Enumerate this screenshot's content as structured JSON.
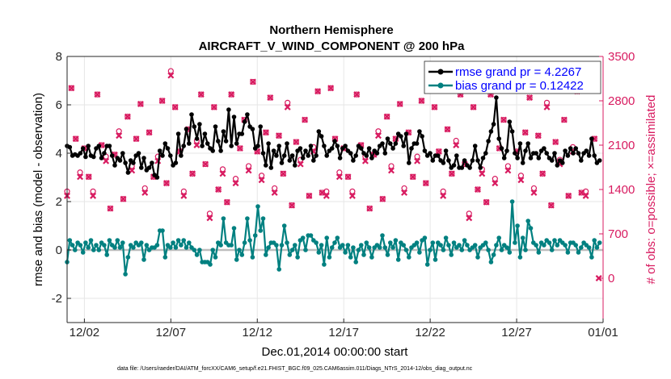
{
  "chart_data": {
    "type": "line",
    "title": "Northern Hemisphere",
    "subtitle": "AIRCRAFT_V_WIND_COMPONENT @ 200 hPa",
    "xlabel": "Dec.01,2014 00:00:00 start",
    "ylabel": "rmse and bias (model - observation)",
    "ylabel_right": "# of obs: o=possible; ×=assimilated",
    "footer": "data file: /Users/raeder/DAI/ATM_forcXX/CAM6_setup/f.e21.FHIST_BGC.f09_025.CAM6assim.011/Diags_NTrS_2014-12/obs_diag_output.nc",
    "x_range": [
      0,
      31
    ],
    "x_ticks": [
      1,
      6,
      11,
      16,
      21,
      26,
      31
    ],
    "x_tick_labels": [
      "12/02",
      "12/07",
      "12/12",
      "12/17",
      "12/22",
      "12/27",
      "01/01"
    ],
    "ylim": [
      -3,
      8
    ],
    "y_ticks": [
      -2,
      0,
      2,
      4,
      6,
      8
    ],
    "y_tick_labels": [
      "-2",
      "0",
      "2",
      "4",
      "6",
      "8"
    ],
    "ylim_right": [
      -700,
      3500
    ],
    "y_ticks_right": [
      0,
      700,
      1400,
      2100,
      2800,
      3500
    ],
    "y_tick_labels_right": [
      "0",
      "700",
      "1400",
      "2100",
      "2800",
      "3500"
    ],
    "legend_position": "top-right",
    "series": [
      {
        "name": "rmse",
        "legend_label": "rmse grand pr = 4.2267",
        "color": "#000000",
        "axis": "left",
        "values": [
          4.3,
          4.25,
          3.9,
          3.95,
          3.9,
          4.0,
          4.2,
          3.85,
          4.3,
          3.9,
          3.85,
          4.2,
          4.3,
          3.8,
          4.0,
          4.3,
          4.3,
          3.9,
          3.5,
          3.8,
          3.7,
          4.0,
          3.6,
          3.2,
          3.7,
          3.6,
          3.9,
          4.0,
          3.4,
          3.8,
          3.3,
          3.4,
          3.6,
          3.1,
          3.0,
          4.1,
          3.9,
          4.4,
          4.2,
          3.9,
          3.5,
          3.6,
          4.8,
          3.9,
          4.3,
          5.0,
          4.4,
          5.6,
          5.1,
          4.6,
          5.2,
          4.3,
          4.8,
          4.4,
          4.2,
          4.1,
          5.1,
          4.5,
          4.1,
          4.9,
          4.5,
          5.8,
          4.3,
          5.5,
          4.4,
          4.8,
          4.8,
          5.3,
          5.6,
          5.1,
          5.0,
          4.2,
          4.3,
          5.1,
          4.0,
          3.5,
          4.4,
          3.4,
          4.1,
          3.9,
          4.3,
          3.6,
          3.9,
          4.4,
          3.7,
          3.9,
          3.5,
          4.1,
          4.2,
          3.8,
          4.1,
          3.9,
          4.3,
          3.7,
          3.9,
          4.9,
          4.7,
          4.3,
          3.9,
          4.1,
          4.2,
          4.5,
          4.3,
          3.8,
          4.2,
          4.3,
          4.1,
          4.0,
          3.7,
          3.9,
          4.3,
          4.2,
          4.0,
          3.9,
          4.2,
          3.8,
          4.1,
          4.0,
          4.3,
          4.4,
          4.0,
          4.6,
          4.4,
          4.2,
          4.4,
          4.8,
          4.7,
          4.3,
          4.8,
          3.6,
          4.2,
          4.4,
          4.4,
          4.9,
          4.7,
          4.1,
          3.9,
          4.0,
          3.7,
          3.9,
          3.9,
          3.7,
          3.6,
          4.1,
          3.7,
          3.4,
          3.5,
          3.9,
          3.4,
          3.4,
          3.7,
          3.5,
          3.4,
          3.7,
          4.3,
          3.7,
          3.4,
          3.8,
          4.0,
          4.5,
          4.9,
          5.2,
          6.3,
          4.6,
          4.2,
          3.8,
          4.1,
          5.3,
          4.9,
          4.0,
          3.8,
          4.4,
          3.6,
          4.1,
          4.4,
          3.8,
          4.0,
          4.0,
          3.8,
          4.1,
          4.2,
          4.0,
          3.8,
          3.7,
          4.0,
          3.5,
          3.7,
          3.6,
          4.1,
          3.9,
          4.2,
          4.0,
          4.2,
          4.0,
          3.7,
          4.0,
          4.1,
          3.9,
          4.6,
          3.9,
          3.6,
          3.7
        ]
      },
      {
        "name": "bias",
        "legend_label": "bias grand pr = 0.12422",
        "color": "#008080",
        "axis": "left",
        "values": [
          -0.5,
          0.4,
          0.2,
          0.0,
          0.3,
          0.2,
          -0.1,
          0.3,
          0.1,
          0.4,
          0.0,
          0.2,
          0.0,
          0.3,
          0.2,
          -0.2,
          0.4,
          0.2,
          0.1,
          0.4,
          0.1,
          0.3,
          -1.0,
          -0.3,
          0.2,
          0.1,
          0.3,
          0.2,
          0.3,
          -0.4,
          0.2,
          0.0,
          0.1,
          0.1,
          0.2,
          0.8,
          0.8,
          -0.3,
          0.2,
          0.1,
          0.3,
          0.1,
          0.4,
          0.2,
          0.4,
          0.1,
          0.3,
          0.1,
          0.0,
          -0.2,
          0.0,
          -0.5,
          -0.5,
          -0.5,
          -0.6,
          0.0,
          -0.3,
          0.3,
          0.2,
          1.3,
          0.3,
          0.2,
          0.2,
          0.9,
          -0.4,
          0.0,
          -0.2,
          0.3,
          1.3,
          0.4,
          -0.3,
          0.6,
          1.8,
          0.8,
          1.3,
          -0.2,
          0.1,
          0.3,
          0.3,
          0.2,
          -0.8,
          0.2,
          1.0,
          0.3,
          -0.2,
          0.0,
          0.2,
          -0.3,
          0.4,
          0.5,
          0.0,
          0.6,
          0.6,
          0.4,
          0.3,
          -0.1,
          0.2,
          -0.6,
          0.5,
          -0.3,
          0.1,
          0.3,
          0.5,
          0.1,
          0.2,
          -0.1,
          0.2,
          -0.3,
          0.1,
          -0.5,
          0.0,
          0.2,
          -0.2,
          0.3,
          0.1,
          -0.3,
          0.1,
          0.2,
          0.1,
          0.6,
          0.1,
          -0.2,
          0.3,
          0.1,
          0.4,
          -0.4,
          0.3,
          0.2,
          0.0,
          -0.3,
          0.1,
          0.2,
          0.3,
          -0.1,
          0.4,
          0.5,
          -0.6,
          0.0,
          0.3,
          -0.4,
          0.3,
          0.2,
          0.0,
          0.5,
          0.2,
          -0.2,
          0.3,
          0.1,
          0.2,
          0.0,
          0.4,
          0.2,
          0.0,
          0.1,
          0.2,
          -0.3,
          0.1,
          0.2,
          0.3,
          0.0,
          -0.5,
          -0.2,
          0.2,
          0.5,
          0.0,
          0.2,
          0.1,
          -0.1,
          2.0,
          0.3,
          1.0,
          -0.3,
          0.5,
          0.0,
          1.2,
          0.9,
          0.3,
          0.2,
          -0.1,
          0.3,
          0.2,
          0.4,
          0.3,
          0.0,
          0.4,
          0.2,
          0.4,
          0.3,
          0.2,
          -0.1,
          0.3,
          0.3,
          0.2,
          -0.1,
          0.1,
          0.3,
          0.2,
          0.1,
          -0.3,
          0.4,
          0.1,
          0.3
        ]
      },
      {
        "name": "possible",
        "marker": "circle",
        "color": "#d81b60",
        "axis": "right",
        "pattern": [
          1300,
          3000,
          2200,
          1600,
          2050,
          1600,
          1300,
          2900,
          2100,
          1850,
          1100,
          1950,
          2250,
          1250,
          2550,
          1700,
          2200,
          2750,
          1350,
          2300,
          1600,
          1850,
          2800,
          1500,
          3200,
          2700,
          2000,
          1300,
          2350,
          1650,
          2100,
          2900,
          1800,
          950,
          2700,
          1400,
          1650,
          1200,
          2900,
          1500,
          2050,
          2500,
          1700,
          3100,
          2000,
          1550,
          2300,
          2850,
          1350,
          2250,
          1650,
          2700,
          1150,
          2150,
          1800,
          2500,
          1300,
          2000,
          2950,
          1350
        ],
        "missing_above_x": 30.6
      },
      {
        "name": "assimilated",
        "marker": "x",
        "color": "#d81b60",
        "axis": "right",
        "pattern": [
          1300,
          3000,
          2200,
          1600,
          2050,
          1600,
          1300,
          2900,
          2100,
          1850,
          1100,
          1950,
          2250,
          1250,
          2550,
          1700,
          2200,
          2750,
          1350,
          2300,
          1600,
          1850,
          2800,
          1500,
          3200,
          2700,
          2000,
          1300,
          2350,
          1650,
          2100,
          2900,
          1800,
          950,
          2700,
          1400,
          1650,
          1200,
          2900,
          1500,
          2050,
          2500,
          1700,
          3100,
          2000,
          1550,
          2300,
          2850,
          1350,
          2250,
          1650,
          2700,
          1150,
          2150,
          1800,
          2500,
          1300,
          2000,
          2950,
          1350
        ],
        "last_value": 0
      }
    ]
  }
}
